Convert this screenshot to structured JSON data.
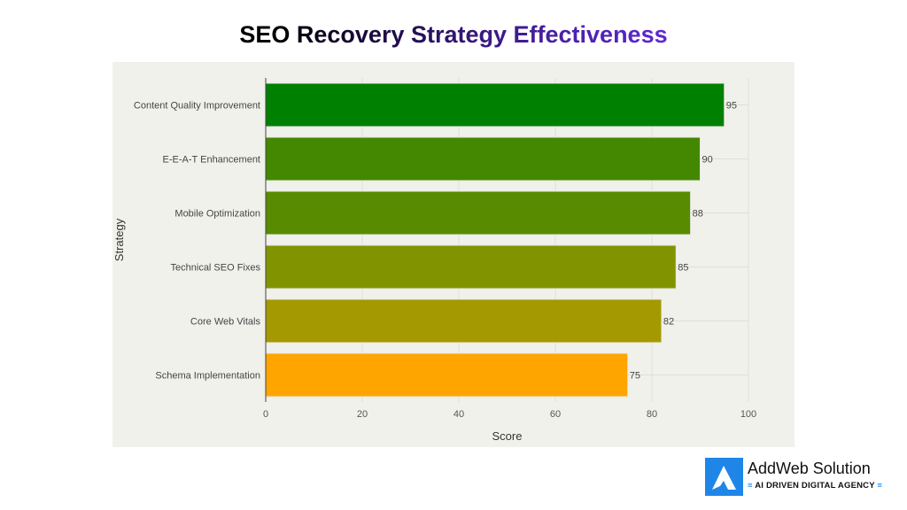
{
  "chart_data": {
    "type": "bar",
    "orientation": "horizontal",
    "title": "SEO Recovery Strategy Effectiveness",
    "xlabel": "Score",
    "ylabel": "Strategy",
    "xlim": [
      0,
      100
    ],
    "xticks": [
      0,
      20,
      40,
      60,
      80,
      100
    ],
    "grid": true,
    "categories": [
      "Content Quality Improvement",
      "E-E-A-T Enhancement",
      "Mobile Optimization",
      "Technical SEO Fixes",
      "Core Web Vitals",
      "Schema Implementation"
    ],
    "values": [
      95,
      90,
      88,
      85,
      82,
      75
    ],
    "colors": [
      "#008000",
      "#438800",
      "#588b00",
      "#819400",
      "#a49900",
      "#ffa500"
    ]
  },
  "logo": {
    "name": "AddWeb Solution",
    "tagline": "AI DRIVEN DIGITAL AGENCY"
  }
}
